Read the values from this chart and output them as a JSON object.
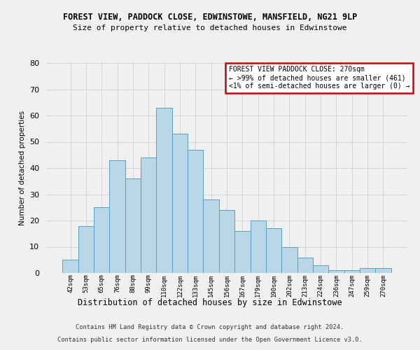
{
  "title": "FOREST VIEW, PADDOCK CLOSE, EDWINSTOWE, MANSFIELD, NG21 9LP",
  "subtitle": "Size of property relative to detached houses in Edwinstowe",
  "xlabel": "Distribution of detached houses by size in Edwinstowe",
  "ylabel": "Number of detached properties",
  "categories": [
    "42sqm",
    "53sqm",
    "65sqm",
    "76sqm",
    "88sqm",
    "99sqm",
    "110sqm",
    "122sqm",
    "133sqm",
    "145sqm",
    "156sqm",
    "167sqm",
    "179sqm",
    "190sqm",
    "202sqm",
    "213sqm",
    "224sqm",
    "236sqm",
    "247sqm",
    "259sqm",
    "270sqm"
  ],
  "values": [
    5,
    18,
    25,
    43,
    36,
    44,
    63,
    53,
    47,
    28,
    24,
    16,
    20,
    17,
    10,
    6,
    3,
    1,
    1,
    2,
    2
  ],
  "bar_color": "#b8d8e8",
  "bar_edge_color": "#5a9fc0",
  "annotation_text": "FOREST VIEW PADDOCK CLOSE: 270sqm\n← >99% of detached houses are smaller (461)\n<1% of semi-detached houses are larger (0) →",
  "annotation_box_color": "#ffffff",
  "annotation_box_edge_color": "#cc0000",
  "ylim": [
    0,
    80
  ],
  "yticks": [
    0,
    10,
    20,
    30,
    40,
    50,
    60,
    70,
    80
  ],
  "footer_line1": "Contains HM Land Registry data © Crown copyright and database right 2024.",
  "footer_line2": "Contains public sector information licensed under the Open Government Licence v3.0.",
  "background_color": "#f0f0f0",
  "grid_color": "#d0d0d0"
}
